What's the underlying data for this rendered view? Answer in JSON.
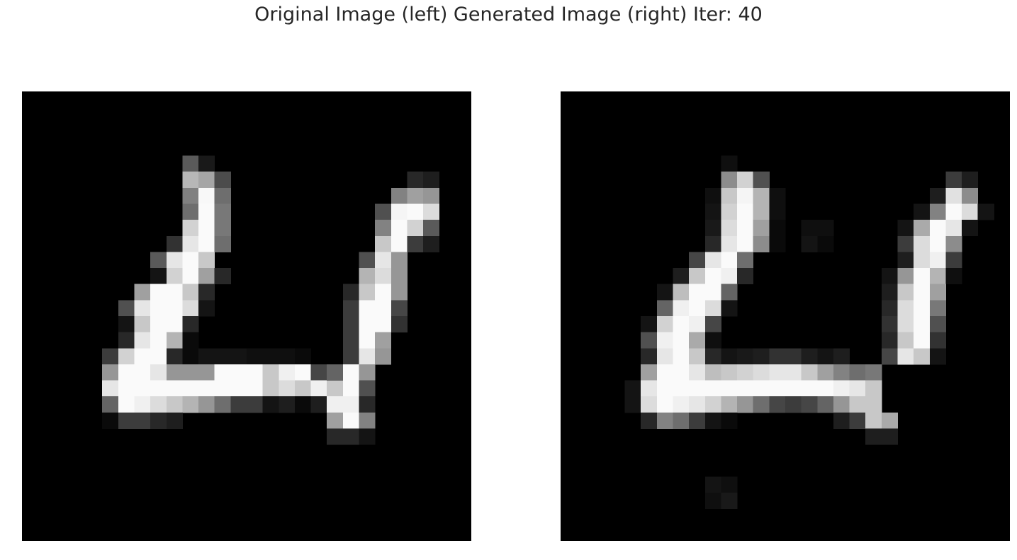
{
  "title": "Original Image (left) Generated Image (right) Iter: 40",
  "images": [
    {
      "name": "original",
      "description_hidden": true,
      "grid_size": 28,
      "colormap": "gray",
      "pixels": [
        [
          10,
          0,
          229,
          20
        ],
        [
          11,
          0,
          183,
          76
        ],
        [
          12,
          0,
          166,
          100
        ],
        [
          13,
          0,
          76,
          50
        ],
        [
          11,
          1,
          128,
          144
        ],
        [
          12,
          1,
          248,
          12
        ],
        [
          13,
          1,
          110,
          150
        ],
        [
          11,
          2,
          110,
          150
        ],
        [
          12,
          2,
          250,
          0
        ],
        [
          13,
          2,
          120,
          150
        ],
        [
          11,
          3,
          210,
          50
        ],
        [
          12,
          3,
          250,
          0
        ],
        [
          13,
          3,
          120,
          150
        ],
        [
          10,
          4,
          50,
          120
        ],
        [
          11,
          4,
          230,
          0
        ],
        [
          12,
          4,
          250,
          0
        ],
        [
          13,
          4,
          110,
          150
        ],
        [
          9,
          5,
          90,
          100
        ],
        [
          10,
          5,
          230,
          0
        ],
        [
          11,
          5,
          250,
          0
        ],
        [
          12,
          5,
          220,
          10
        ],
        [
          8,
          6,
          20,
          80
        ],
        [
          9,
          6,
          240,
          0
        ],
        [
          10,
          6,
          250,
          0
        ],
        [
          11,
          6,
          200,
          20
        ],
        [
          12,
          6,
          60,
          120
        ],
        [
          7,
          7,
          160,
          60
        ],
        [
          8,
          7,
          250,
          0
        ],
        [
          9,
          7,
          250,
          0
        ],
        [
          10,
          7,
          200,
          20
        ],
        [
          11,
          7,
          40,
          100
        ],
        [
          6,
          8,
          80,
          140
        ],
        [
          7,
          8,
          230,
          20
        ],
        [
          8,
          8,
          250,
          0
        ],
        [
          9,
          8,
          250,
          0
        ],
        [
          10,
          8,
          220,
          20
        ],
        [
          11,
          8,
          20,
          80
        ],
        [
          5,
          9,
          20,
          80
        ],
        [
          6,
          9,
          200,
          60
        ],
        [
          7,
          9,
          250,
          0
        ],
        [
          8,
          9,
          250,
          0
        ],
        [
          9,
          9,
          250,
          0
        ],
        [
          10,
          9,
          50,
          100
        ],
        [
          5,
          10,
          40,
          120
        ],
        [
          6,
          10,
          230,
          30
        ],
        [
          7,
          10,
          250,
          0
        ],
        [
          8,
          10,
          250,
          0
        ],
        [
          9,
          10,
          180,
          40
        ],
        [
          10,
          10,
          10,
          60
        ],
        [
          4,
          11,
          60,
          150
        ],
        [
          5,
          11,
          210,
          50
        ],
        [
          6,
          11,
          250,
          0
        ],
        [
          7,
          11,
          250,
          0
        ],
        [
          8,
          11,
          230,
          20
        ],
        [
          9,
          11,
          40,
          120
        ],
        [
          10,
          11,
          10,
          60
        ],
        [
          4,
          12,
          150,
          100
        ],
        [
          5,
          12,
          250,
          0
        ],
        [
          6,
          12,
          250,
          0
        ],
        [
          7,
          12,
          230,
          20
        ],
        [
          8,
          12,
          160,
          60
        ],
        [
          9,
          12,
          150,
          80
        ],
        [
          10,
          12,
          150,
          60
        ],
        [
          11,
          12,
          230,
          20
        ],
        [
          12,
          12,
          250,
          0
        ],
        [
          13,
          12,
          250,
          0
        ],
        [
          14,
          12,
          250,
          0
        ],
        [
          15,
          12,
          200,
          20
        ],
        [
          16,
          12,
          240,
          0
        ],
        [
          17,
          12,
          250,
          0
        ],
        [
          18,
          12,
          70,
          90
        ],
        [
          19,
          12,
          10,
          60
        ],
        [
          4,
          13,
          230,
          20
        ],
        [
          5,
          13,
          250,
          0
        ],
        [
          6,
          13,
          250,
          0
        ],
        [
          7,
          13,
          250,
          0
        ],
        [
          8,
          13,
          250,
          0
        ],
        [
          9,
          13,
          250,
          0
        ],
        [
          10,
          13,
          250,
          0
        ],
        [
          11,
          13,
          250,
          0
        ],
        [
          12,
          13,
          250,
          0
        ],
        [
          13,
          13,
          250,
          0
        ],
        [
          14,
          13,
          250,
          0
        ],
        [
          15,
          13,
          200,
          20
        ],
        [
          16,
          13,
          220,
          10
        ],
        [
          17,
          13,
          200,
          20
        ],
        [
          18,
          13,
          240,
          0
        ],
        [
          19,
          13,
          200,
          20
        ],
        [
          4,
          14,
          100,
          120
        ],
        [
          5,
          14,
          250,
          0
        ],
        [
          6,
          14,
          240,
          10
        ],
        [
          7,
          14,
          220,
          20
        ],
        [
          8,
          14,
          200,
          20
        ],
        [
          9,
          14,
          180,
          40
        ],
        [
          10,
          14,
          150,
          60
        ],
        [
          11,
          14,
          110,
          60
        ],
        [
          12,
          14,
          60,
          80
        ],
        [
          13,
          14,
          40,
          80
        ],
        [
          14,
          14,
          50,
          80
        ],
        [
          15,
          14,
          20,
          60
        ],
        [
          16,
          14,
          30,
          60
        ],
        [
          17,
          14,
          10,
          40
        ],
        [
          18,
          14,
          30,
          80
        ],
        [
          4,
          15,
          10,
          40
        ],
        [
          5,
          15,
          60,
          120
        ],
        [
          6,
          15,
          60,
          120
        ],
        [
          7,
          15,
          40,
          100
        ],
        [
          8,
          15,
          30,
          80
        ]
      ]
    }
  ]
}
